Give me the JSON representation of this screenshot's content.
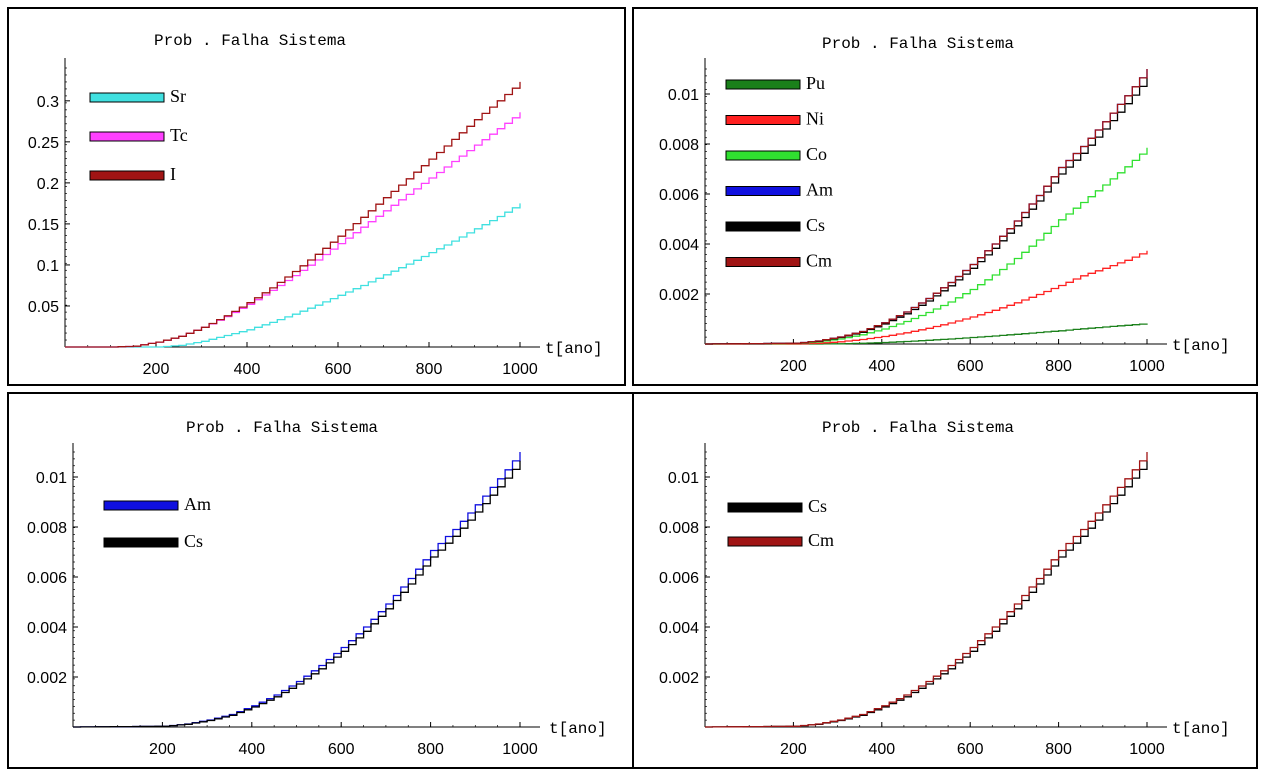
{
  "chart_data": [
    {
      "type": "line",
      "title": "Prob . Falha  Sistema",
      "xlabel": "t[ano]",
      "ylabel": "",
      "xlim": [
        0,
        1000
      ],
      "ylim": [
        0,
        0.34
      ],
      "xticks": [
        200,
        400,
        600,
        800,
        1000
      ],
      "yticks": [
        0.05,
        0.1,
        0.15,
        0.2,
        0.25,
        0.3
      ],
      "ytick_labels": [
        "0.05",
        "0.1",
        "0.15",
        "0.2",
        "0.25",
        "0.3"
      ],
      "legend_position": "top-left",
      "x": [
        0,
        100,
        150,
        200,
        250,
        300,
        350,
        400,
        450,
        500,
        550,
        600,
        650,
        700,
        750,
        800,
        850,
        900,
        950,
        1000
      ],
      "series": [
        {
          "name": "Sr",
          "color": "#40e0e0",
          "values": [
            0,
            0,
            0,
            0,
            0.002,
            0.007,
            0.014,
            0.021,
            0.03,
            0.04,
            0.051,
            0.063,
            0.075,
            0.088,
            0.101,
            0.115,
            0.129,
            0.144,
            0.159,
            0.175
          ]
        },
        {
          "name": "Tc",
          "color": "#ff40ff",
          "values": [
            0,
            0,
            0.001,
            0.006,
            0.013,
            0.024,
            0.037,
            0.052,
            0.069,
            0.087,
            0.106,
            0.126,
            0.146,
            0.166,
            0.186,
            0.206,
            0.226,
            0.246,
            0.266,
            0.286
          ]
        },
        {
          "name": "I",
          "color": "#a01414",
          "values": [
            0,
            0,
            0.001,
            0.006,
            0.013,
            0.024,
            0.038,
            0.054,
            0.072,
            0.092,
            0.113,
            0.135,
            0.158,
            0.182,
            0.205,
            0.229,
            0.253,
            0.277,
            0.3,
            0.323
          ]
        }
      ]
    },
    {
      "type": "line",
      "title": "Prob . Falha  Sistema",
      "xlabel": "t[ano]",
      "ylabel": "",
      "xlim": [
        0,
        1000
      ],
      "ylim": [
        0,
        0.011
      ],
      "xticks": [
        200,
        400,
        600,
        800,
        1000
      ],
      "yticks": [
        0.002,
        0.004,
        0.006,
        0.008,
        0.01
      ],
      "ytick_labels": [
        "0.002",
        "0.004",
        "0.006",
        "0.008",
        "0.01"
      ],
      "legend_position": "top-left",
      "x": [
        0,
        200,
        250,
        300,
        350,
        400,
        450,
        500,
        550,
        600,
        650,
        700,
        750,
        800,
        850,
        900,
        950,
        1000
      ],
      "series": [
        {
          "name": "Pu",
          "color": "#1a801a",
          "values": [
            0,
            0,
            0,
            1e-05,
            3e-05,
            6e-05,
            0.0001,
            0.00015,
            0.0002,
            0.00026,
            0.00032,
            0.00039,
            0.00046,
            0.00053,
            0.00061,
            0.00068,
            0.00075,
            0.00082
          ]
        },
        {
          "name": "Ni",
          "color": "#ff2020",
          "values": [
            0,
            0,
            3e-05,
            9e-05,
            0.00018,
            0.0003,
            0.00045,
            0.00063,
            0.00084,
            0.00108,
            0.00135,
            0.00165,
            0.00198,
            0.00234,
            0.00273,
            0.00303,
            0.00335,
            0.00373
          ]
        },
        {
          "name": "Co",
          "color": "#30e030",
          "values": [
            0,
            2e-05,
            8e-05,
            0.0002,
            0.00037,
            0.0006,
            0.0009,
            0.00126,
            0.00168,
            0.00218,
            0.00276,
            0.00342,
            0.00416,
            0.00497,
            0.00566,
            0.00636,
            0.00709,
            0.00785
          ]
        },
        {
          "name": "Am",
          "color": "#1010e0",
          "values": [
            0,
            3e-05,
            0.00012,
            0.00028,
            0.0005,
            0.00085,
            0.00128,
            0.00182,
            0.00246,
            0.00318,
            0.004,
            0.00492,
            0.00594,
            0.00706,
            0.0079,
            0.00889,
            0.00993,
            0.011
          ]
        },
        {
          "name": "Cs",
          "color": "#000000",
          "values": [
            0,
            3e-05,
            0.00011,
            0.00026,
            0.00047,
            0.0008,
            0.00121,
            0.00172,
            0.00233,
            0.00303,
            0.00383,
            0.00473,
            0.00572,
            0.0068,
            0.00763,
            0.0086,
            0.00961,
            0.01065
          ]
        },
        {
          "name": "Cm",
          "color": "#a01414",
          "values": [
            0,
            3e-05,
            0.00012,
            0.00028,
            0.0005,
            0.00085,
            0.00128,
            0.00182,
            0.00246,
            0.00318,
            0.004,
            0.00492,
            0.00594,
            0.00706,
            0.0079,
            0.00889,
            0.00993,
            0.011
          ]
        }
      ]
    },
    {
      "type": "line",
      "title": "Prob . Falha  Sistema",
      "xlabel": "t[ano]",
      "ylabel": "",
      "xlim": [
        0,
        1000
      ],
      "ylim": [
        0,
        0.011
      ],
      "xticks": [
        200,
        400,
        600,
        800,
        1000
      ],
      "yticks": [
        0.002,
        0.004,
        0.006,
        0.008,
        0.01
      ],
      "ytick_labels": [
        "0.002",
        "0.004",
        "0.006",
        "0.008",
        "0.01"
      ],
      "legend_position": "top-left",
      "x": [
        0,
        200,
        250,
        300,
        350,
        400,
        450,
        500,
        550,
        600,
        650,
        700,
        750,
        800,
        850,
        900,
        950,
        1000
      ],
      "series": [
        {
          "name": "Am",
          "color": "#1010e0",
          "values": [
            0,
            3e-05,
            0.00012,
            0.00028,
            0.0005,
            0.00085,
            0.00128,
            0.00182,
            0.00246,
            0.00318,
            0.004,
            0.00492,
            0.00594,
            0.00706,
            0.0079,
            0.00889,
            0.00993,
            0.011
          ]
        },
        {
          "name": "Cs",
          "color": "#000000",
          "values": [
            0,
            3e-05,
            0.00011,
            0.00026,
            0.00047,
            0.0008,
            0.00121,
            0.00172,
            0.00233,
            0.00303,
            0.00383,
            0.00473,
            0.00572,
            0.0068,
            0.00763,
            0.0086,
            0.00961,
            0.01065
          ]
        }
      ]
    },
    {
      "type": "line",
      "title": "Prob . Falha  Sistema",
      "xlabel": "t[ano]",
      "ylabel": "",
      "xlim": [
        0,
        1000
      ],
      "ylim": [
        0,
        0.011
      ],
      "xticks": [
        200,
        400,
        600,
        800,
        1000
      ],
      "yticks": [
        0.002,
        0.004,
        0.006,
        0.008,
        0.01
      ],
      "ytick_labels": [
        "0.002",
        "0.004",
        "0.006",
        "0.008",
        "0.01"
      ],
      "legend_position": "top-left",
      "x": [
        0,
        200,
        250,
        300,
        350,
        400,
        450,
        500,
        550,
        600,
        650,
        700,
        750,
        800,
        850,
        900,
        950,
        1000
      ],
      "series": [
        {
          "name": "Cs",
          "color": "#000000",
          "values": [
            0,
            3e-05,
            0.00011,
            0.00026,
            0.00047,
            0.0008,
            0.00121,
            0.00172,
            0.00233,
            0.00303,
            0.00383,
            0.00473,
            0.00572,
            0.0068,
            0.00763,
            0.0086,
            0.00961,
            0.01065
          ]
        },
        {
          "name": "Cm",
          "color": "#a01414",
          "values": [
            0,
            3e-05,
            0.00012,
            0.00028,
            0.0005,
            0.00085,
            0.00128,
            0.00182,
            0.00246,
            0.00318,
            0.004,
            0.00492,
            0.00594,
            0.00706,
            0.0079,
            0.00889,
            0.00993,
            0.011
          ]
        }
      ]
    }
  ]
}
